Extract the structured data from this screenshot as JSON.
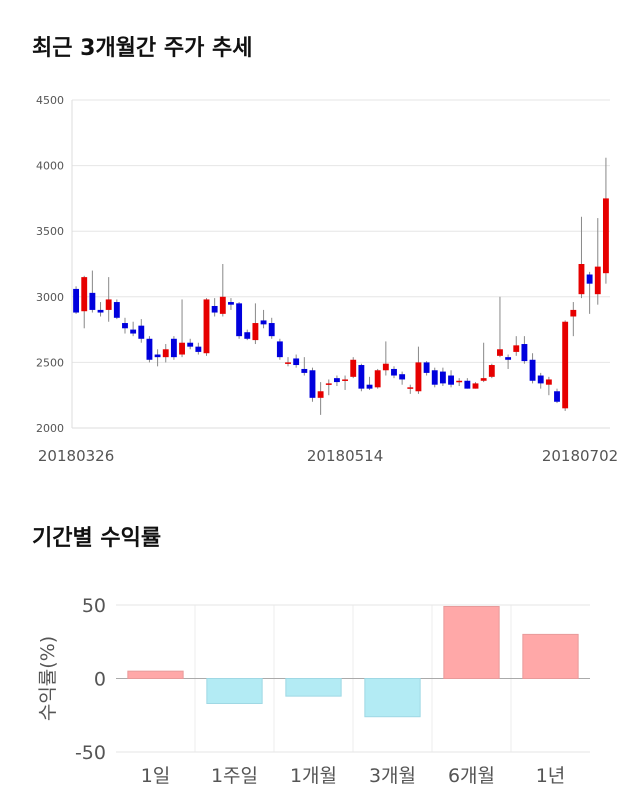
{
  "sections": {
    "price_title": "최근 3개월간 주가 추세",
    "returns_title": "기간별 수익률"
  },
  "colors": {
    "up": "#e60000",
    "down": "#0000dd",
    "bar_pos": "#ffa8a8",
    "bar_neg": "#b3ebf4"
  },
  "chart_data": [
    {
      "type": "candlestick",
      "title": "최근 3개월간 주가 추세",
      "ylim": [
        2000,
        4500
      ],
      "y_ticks": [
        2000,
        2500,
        3000,
        3500,
        4000,
        4500
      ],
      "x_tick_labels": [
        "20180326",
        "20180514",
        "20180702"
      ],
      "grid": true,
      "candles": [
        [
          3060,
          2880,
          3080,
          2870
        ],
        [
          2890,
          3150,
          3160,
          2760
        ],
        [
          3030,
          2900,
          3200,
          2880
        ],
        [
          2900,
          2880,
          2960,
          2850
        ],
        [
          2900,
          2980,
          3150,
          2810
        ],
        [
          2960,
          2840,
          2980,
          2830
        ],
        [
          2800,
          2760,
          2840,
          2720
        ],
        [
          2750,
          2720,
          2810,
          2700
        ],
        [
          2780,
          2680,
          2830,
          2650
        ],
        [
          2680,
          2520,
          2700,
          2500
        ],
        [
          2560,
          2540,
          2600,
          2470
        ],
        [
          2540,
          2600,
          2640,
          2500
        ],
        [
          2680,
          2540,
          2700,
          2520
        ],
        [
          2560,
          2650,
          2980,
          2540
        ],
        [
          2650,
          2620,
          2680,
          2600
        ],
        [
          2620,
          2580,
          2650,
          2560
        ],
        [
          2570,
          2980,
          2990,
          2550
        ],
        [
          2930,
          2880,
          2990,
          2850
        ],
        [
          2870,
          3000,
          3250,
          2850
        ],
        [
          2960,
          2940,
          2990,
          2900
        ],
        [
          2950,
          2700,
          2960,
          2680
        ],
        [
          2730,
          2680,
          2750,
          2670
        ],
        [
          2670,
          2800,
          2950,
          2640
        ],
        [
          2820,
          2790,
          2900,
          2760
        ],
        [
          2800,
          2700,
          2840,
          2680
        ],
        [
          2660,
          2540,
          2680,
          2520
        ],
        [
          2490,
          2500,
          2540,
          2470
        ],
        [
          2530,
          2480,
          2560,
          2460
        ],
        [
          2450,
          2420,
          2540,
          2400
        ],
        [
          2440,
          2230,
          2460,
          2200
        ],
        [
          2230,
          2280,
          2350,
          2100
        ],
        [
          2330,
          2340,
          2370,
          2250
        ],
        [
          2380,
          2350,
          2400,
          2320
        ],
        [
          2370,
          2370,
          2400,
          2290
        ],
        [
          2390,
          2520,
          2540,
          2380
        ],
        [
          2480,
          2300,
          2490,
          2280
        ],
        [
          2330,
          2300,
          2390,
          2290
        ],
        [
          2310,
          2440,
          2450,
          2300
        ],
        [
          2440,
          2490,
          2660,
          2400
        ],
        [
          2450,
          2400,
          2470,
          2380
        ],
        [
          2410,
          2370,
          2430,
          2330
        ],
        [
          2310,
          2310,
          2330,
          2260
        ],
        [
          2280,
          2500,
          2620,
          2260
        ],
        [
          2500,
          2420,
          2510,
          2400
        ],
        [
          2440,
          2330,
          2460,
          2310
        ],
        [
          2430,
          2340,
          2460,
          2320
        ],
        [
          2400,
          2330,
          2440,
          2310
        ],
        [
          2360,
          2360,
          2380,
          2320
        ],
        [
          2360,
          2300,
          2380,
          2300
        ],
        [
          2300,
          2340,
          2350,
          2300
        ],
        [
          2360,
          2380,
          2650,
          2350
        ],
        [
          2390,
          2480,
          2490,
          2380
        ],
        [
          2550,
          2600,
          3000,
          2540
        ],
        [
          2540,
          2520,
          2560,
          2450
        ],
        [
          2580,
          2630,
          2700,
          2550
        ],
        [
          2640,
          2510,
          2700,
          2490
        ],
        [
          2520,
          2360,
          2570,
          2340
        ],
        [
          2400,
          2340,
          2420,
          2300
        ],
        [
          2330,
          2370,
          2390,
          2250
        ],
        [
          2280,
          2200,
          2300,
          2190
        ],
        [
          2150,
          2810,
          2820,
          2130
        ],
        [
          2850,
          2900,
          2960,
          2700
        ],
        [
          3020,
          3250,
          3610,
          2990
        ],
        [
          3170,
          3100,
          3190,
          2870
        ],
        [
          3020,
          3230,
          3600,
          2940
        ],
        [
          3180,
          3750,
          4060,
          3100
        ]
      ]
    },
    {
      "type": "bar",
      "categories": [
        "1일",
        "1주일",
        "1개월",
        "3개월",
        "6개월",
        "1년"
      ],
      "values": [
        5,
        -17,
        -12,
        -26,
        49,
        30
      ],
      "ylabel": "수익률(%)",
      "ylim": [
        -50,
        50
      ],
      "y_ticks": [
        -50,
        0,
        50
      ],
      "grid": true
    }
  ]
}
